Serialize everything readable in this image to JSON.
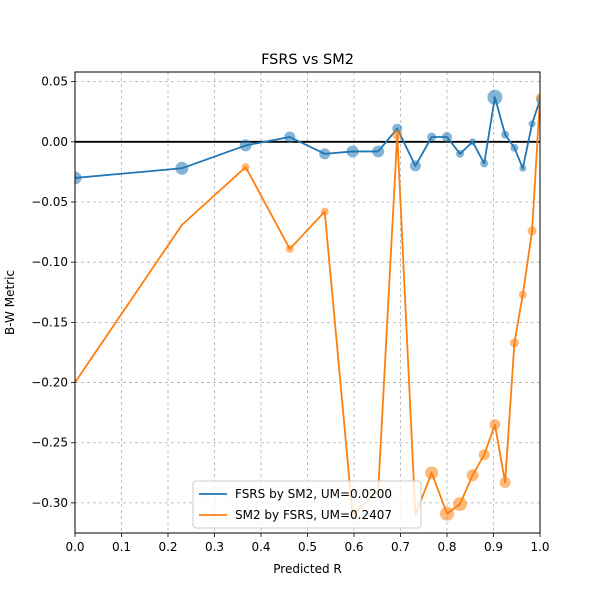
{
  "chart_data": {
    "type": "line",
    "title": "FSRS vs SM2",
    "xlabel": "Predicted R",
    "ylabel": "B-W Metric",
    "xlim": [
      0.0,
      1.0
    ],
    "ylim": [
      -0.325,
      0.058
    ],
    "xticks": [
      "0.0",
      "0.1",
      "0.2",
      "0.3",
      "0.4",
      "0.5",
      "0.6",
      "0.7",
      "0.8",
      "0.9",
      "1.0"
    ],
    "yticks": [
      "0.05",
      "0.00",
      "−0.05",
      "−0.10",
      "−0.15",
      "−0.20",
      "−0.25",
      "−0.30"
    ],
    "grid": true,
    "legend_position": "lower center",
    "reference_line_y": 0.0,
    "series": [
      {
        "name": "FSRS by SM2, UM=0.0200",
        "color": "#1f77b4",
        "x": [
          0.0,
          0.23,
          0.367,
          0.462,
          0.537,
          0.597,
          0.652,
          0.693,
          0.732,
          0.767,
          0.8,
          0.828,
          0.855,
          0.88,
          0.903,
          0.925,
          0.945,
          0.963,
          0.983,
          1.0
        ],
        "y": [
          -0.03,
          -0.022,
          -0.003,
          0.004,
          -0.01,
          -0.008,
          -0.008,
          0.011,
          -0.02,
          0.004,
          0.004,
          -0.01,
          0.0,
          -0.018,
          0.037,
          0.006,
          -0.005,
          -0.022,
          0.015,
          0.035
        ],
        "sizes": [
          11,
          11,
          10,
          9,
          9,
          10,
          10,
          8,
          9,
          7,
          8,
          6,
          5,
          6,
          13,
          6,
          6,
          5,
          5,
          6
        ]
      },
      {
        "name": "SM2 by FSRS, UM=0.2407",
        "color": "#ff7f0e",
        "x": [
          0.0,
          0.23,
          0.367,
          0.462,
          0.537,
          0.597,
          0.652,
          0.693,
          0.732,
          0.767,
          0.8,
          0.828,
          0.855,
          0.88,
          0.903,
          0.925,
          0.945,
          0.963,
          0.983,
          1.0
        ],
        "y": [
          -0.2,
          -0.069,
          -0.021,
          -0.089,
          -0.058,
          -0.31,
          -0.29,
          0.006,
          -0.31,
          -0.275,
          -0.309,
          -0.301,
          -0.277,
          -0.26,
          -0.235,
          -0.283,
          -0.167,
          -0.127,
          -0.074,
          0.037
        ],
        "sizes": [
          0,
          0,
          6,
          6,
          6,
          0,
          0,
          8,
          0,
          11,
          12,
          12,
          10,
          9,
          9,
          9,
          7,
          6,
          7,
          6
        ]
      }
    ]
  }
}
